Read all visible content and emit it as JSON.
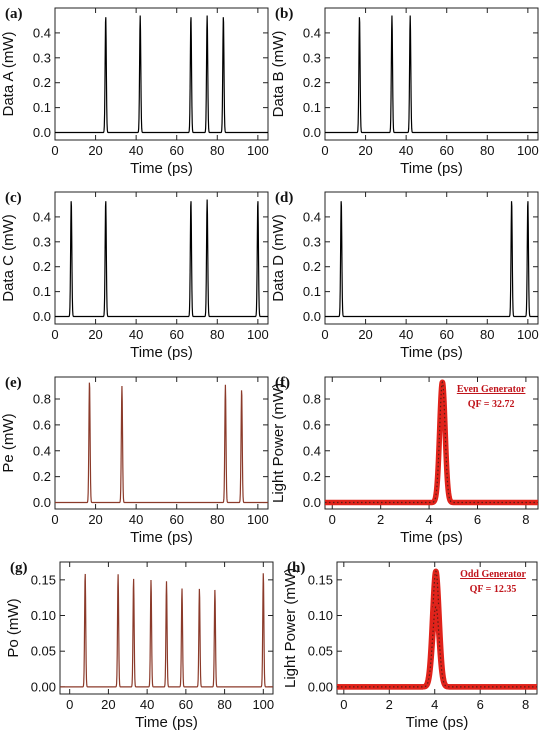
{
  "chart_data": [
    {
      "panel_label": "(a)",
      "type": "line",
      "xlabel": "Time (ps)",
      "ylabel": "Data A (mW)",
      "xlim": [
        0,
        105
      ],
      "ylim": [
        -0.03,
        0.5
      ],
      "xticks": [
        "0",
        "20",
        "40",
        "60",
        "80",
        "100"
      ],
      "yticks": [
        "0.0",
        "0.1",
        "0.2",
        "0.3",
        "0.4"
      ],
      "series": [
        {
          "color": "#000000",
          "peaks": [
            {
              "x": 25,
              "y": 0.47
            },
            {
              "x": 42,
              "y": 0.47
            },
            {
              "x": 67,
              "y": 0.47
            },
            {
              "x": 75,
              "y": 0.47
            },
            {
              "x": 83,
              "y": 0.47
            }
          ],
          "width": 0.9
        }
      ]
    },
    {
      "panel_label": "(b)",
      "type": "line",
      "xlabel": "Time (ps)",
      "ylabel": "Data B (mW)",
      "xlim": [
        0,
        105
      ],
      "ylim": [
        -0.03,
        0.5
      ],
      "xticks": [
        "0",
        "20",
        "40",
        "60",
        "80",
        "100"
      ],
      "yticks": [
        "0.0",
        "0.1",
        "0.2",
        "0.3",
        "0.4"
      ],
      "series": [
        {
          "color": "#000000",
          "peaks": [
            {
              "x": 17,
              "y": 0.47
            },
            {
              "x": 33,
              "y": 0.47
            },
            {
              "x": 42,
              "y": 0.47
            }
          ],
          "width": 0.9
        }
      ]
    },
    {
      "panel_label": "(c)",
      "type": "line",
      "xlabel": "Time (ps)",
      "ylabel": "Data C (mW)",
      "xlim": [
        0,
        105
      ],
      "ylim": [
        -0.03,
        0.5
      ],
      "xticks": [
        "0",
        "20",
        "40",
        "60",
        "80",
        "100"
      ],
      "yticks": [
        "0.0",
        "0.1",
        "0.2",
        "0.3",
        "0.4"
      ],
      "series": [
        {
          "color": "#000000",
          "peaks": [
            {
              "x": 8,
              "y": 0.47
            },
            {
              "x": 25,
              "y": 0.47
            },
            {
              "x": 67,
              "y": 0.47
            },
            {
              "x": 75,
              "y": 0.47
            },
            {
              "x": 100,
              "y": 0.47
            }
          ],
          "width": 0.9
        }
      ]
    },
    {
      "panel_label": "(d)",
      "type": "line",
      "xlabel": "Time (ps)",
      "ylabel": "Data D (mW)",
      "xlim": [
        0,
        105
      ],
      "ylim": [
        -0.03,
        0.5
      ],
      "xticks": [
        "0",
        "20",
        "40",
        "60",
        "80",
        "100"
      ],
      "yticks": [
        "0.0",
        "0.1",
        "0.2",
        "0.3",
        "0.4"
      ],
      "series": [
        {
          "color": "#000000",
          "peaks": [
            {
              "x": 8,
              "y": 0.47
            },
            {
              "x": 92,
              "y": 0.47
            },
            {
              "x": 100,
              "y": 0.47
            }
          ],
          "width": 0.9
        }
      ]
    },
    {
      "panel_label": "(e)",
      "type": "line",
      "xlabel": "Time (ps)",
      "ylabel": "Pe (mW)",
      "xlim": [
        0,
        105
      ],
      "ylim": [
        -0.05,
        0.97
      ],
      "xticks": [
        "0",
        "20",
        "40",
        "60",
        "80",
        "100"
      ],
      "yticks": [
        "0.0",
        "0.2",
        "0.4",
        "0.6",
        "0.8"
      ],
      "series": [
        {
          "color": "#8b3a2a",
          "peaks": [
            {
              "x": 17,
              "y": 0.94
            },
            {
              "x": 33,
              "y": 0.9
            },
            {
              "x": 84,
              "y": 0.91
            },
            {
              "x": 92,
              "y": 0.88
            }
          ],
          "width": 0.9
        }
      ]
    },
    {
      "panel_label": "(f)",
      "type": "line",
      "xlabel": "Time (ps)",
      "ylabel": "Light Power (mW)",
      "xlim": [
        -0.3,
        8.5
      ],
      "ylim": [
        -0.05,
        0.97
      ],
      "xticks": [
        "0",
        "2",
        "4",
        "6",
        "8"
      ],
      "yticks": [
        "0.0",
        "0.2",
        "0.4",
        "0.6",
        "0.8"
      ],
      "annotation": {
        "title": "Even Generator",
        "qf": "QF = 32.72"
      },
      "series": [
        {
          "color": "#e0231b",
          "peaks": [
            {
              "x": 4.55,
              "y": 0.93
            }
          ],
          "width": 0.35,
          "thick": true
        }
      ]
    },
    {
      "panel_label": "(g)",
      "type": "line",
      "xlabel": "Time (ps)",
      "ylabel": "Po (mW)",
      "xlim": [
        -5,
        105
      ],
      "ylim": [
        -0.01,
        0.175
      ],
      "xticks": [
        "0",
        "20",
        "40",
        "60",
        "80",
        "100"
      ],
      "yticks": [
        "0.00",
        "0.05",
        "0.10",
        "0.15"
      ],
      "series": [
        {
          "color": "#8b3a2a",
          "peaks": [
            {
              "x": 8,
              "y": 0.16
            },
            {
              "x": 25,
              "y": 0.158
            },
            {
              "x": 33,
              "y": 0.152
            },
            {
              "x": 42,
              "y": 0.15
            },
            {
              "x": 50,
              "y": 0.148
            },
            {
              "x": 58,
              "y": 0.138
            },
            {
              "x": 67,
              "y": 0.138
            },
            {
              "x": 75,
              "y": 0.136
            },
            {
              "x": 100,
              "y": 0.16
            }
          ],
          "width": 0.9
        }
      ]
    },
    {
      "panel_label": "(h)",
      "type": "line",
      "xlabel": "Time (ps)",
      "ylabel": "Light Power (mW)",
      "xlim": [
        -0.3,
        8.5
      ],
      "ylim": [
        -0.01,
        0.175
      ],
      "xticks": [
        "0",
        "2",
        "4",
        "6",
        "8"
      ],
      "yticks": [
        "0.00",
        "0.05",
        "0.10",
        "0.15"
      ],
      "annotation": {
        "title": "Odd Generator",
        "qf": "QF = 12.35"
      },
      "series": [
        {
          "color": "#e0231b",
          "peaks": [
            {
              "x": 4.05,
              "y": 0.162
            }
          ],
          "width": 0.45,
          "thick": true
        },
        {
          "color": "#e0231b",
          "peaks": [
            {
              "x": 4.05,
              "y": 0.112
            }
          ],
          "width": 0.45,
          "thick": true
        }
      ]
    }
  ]
}
